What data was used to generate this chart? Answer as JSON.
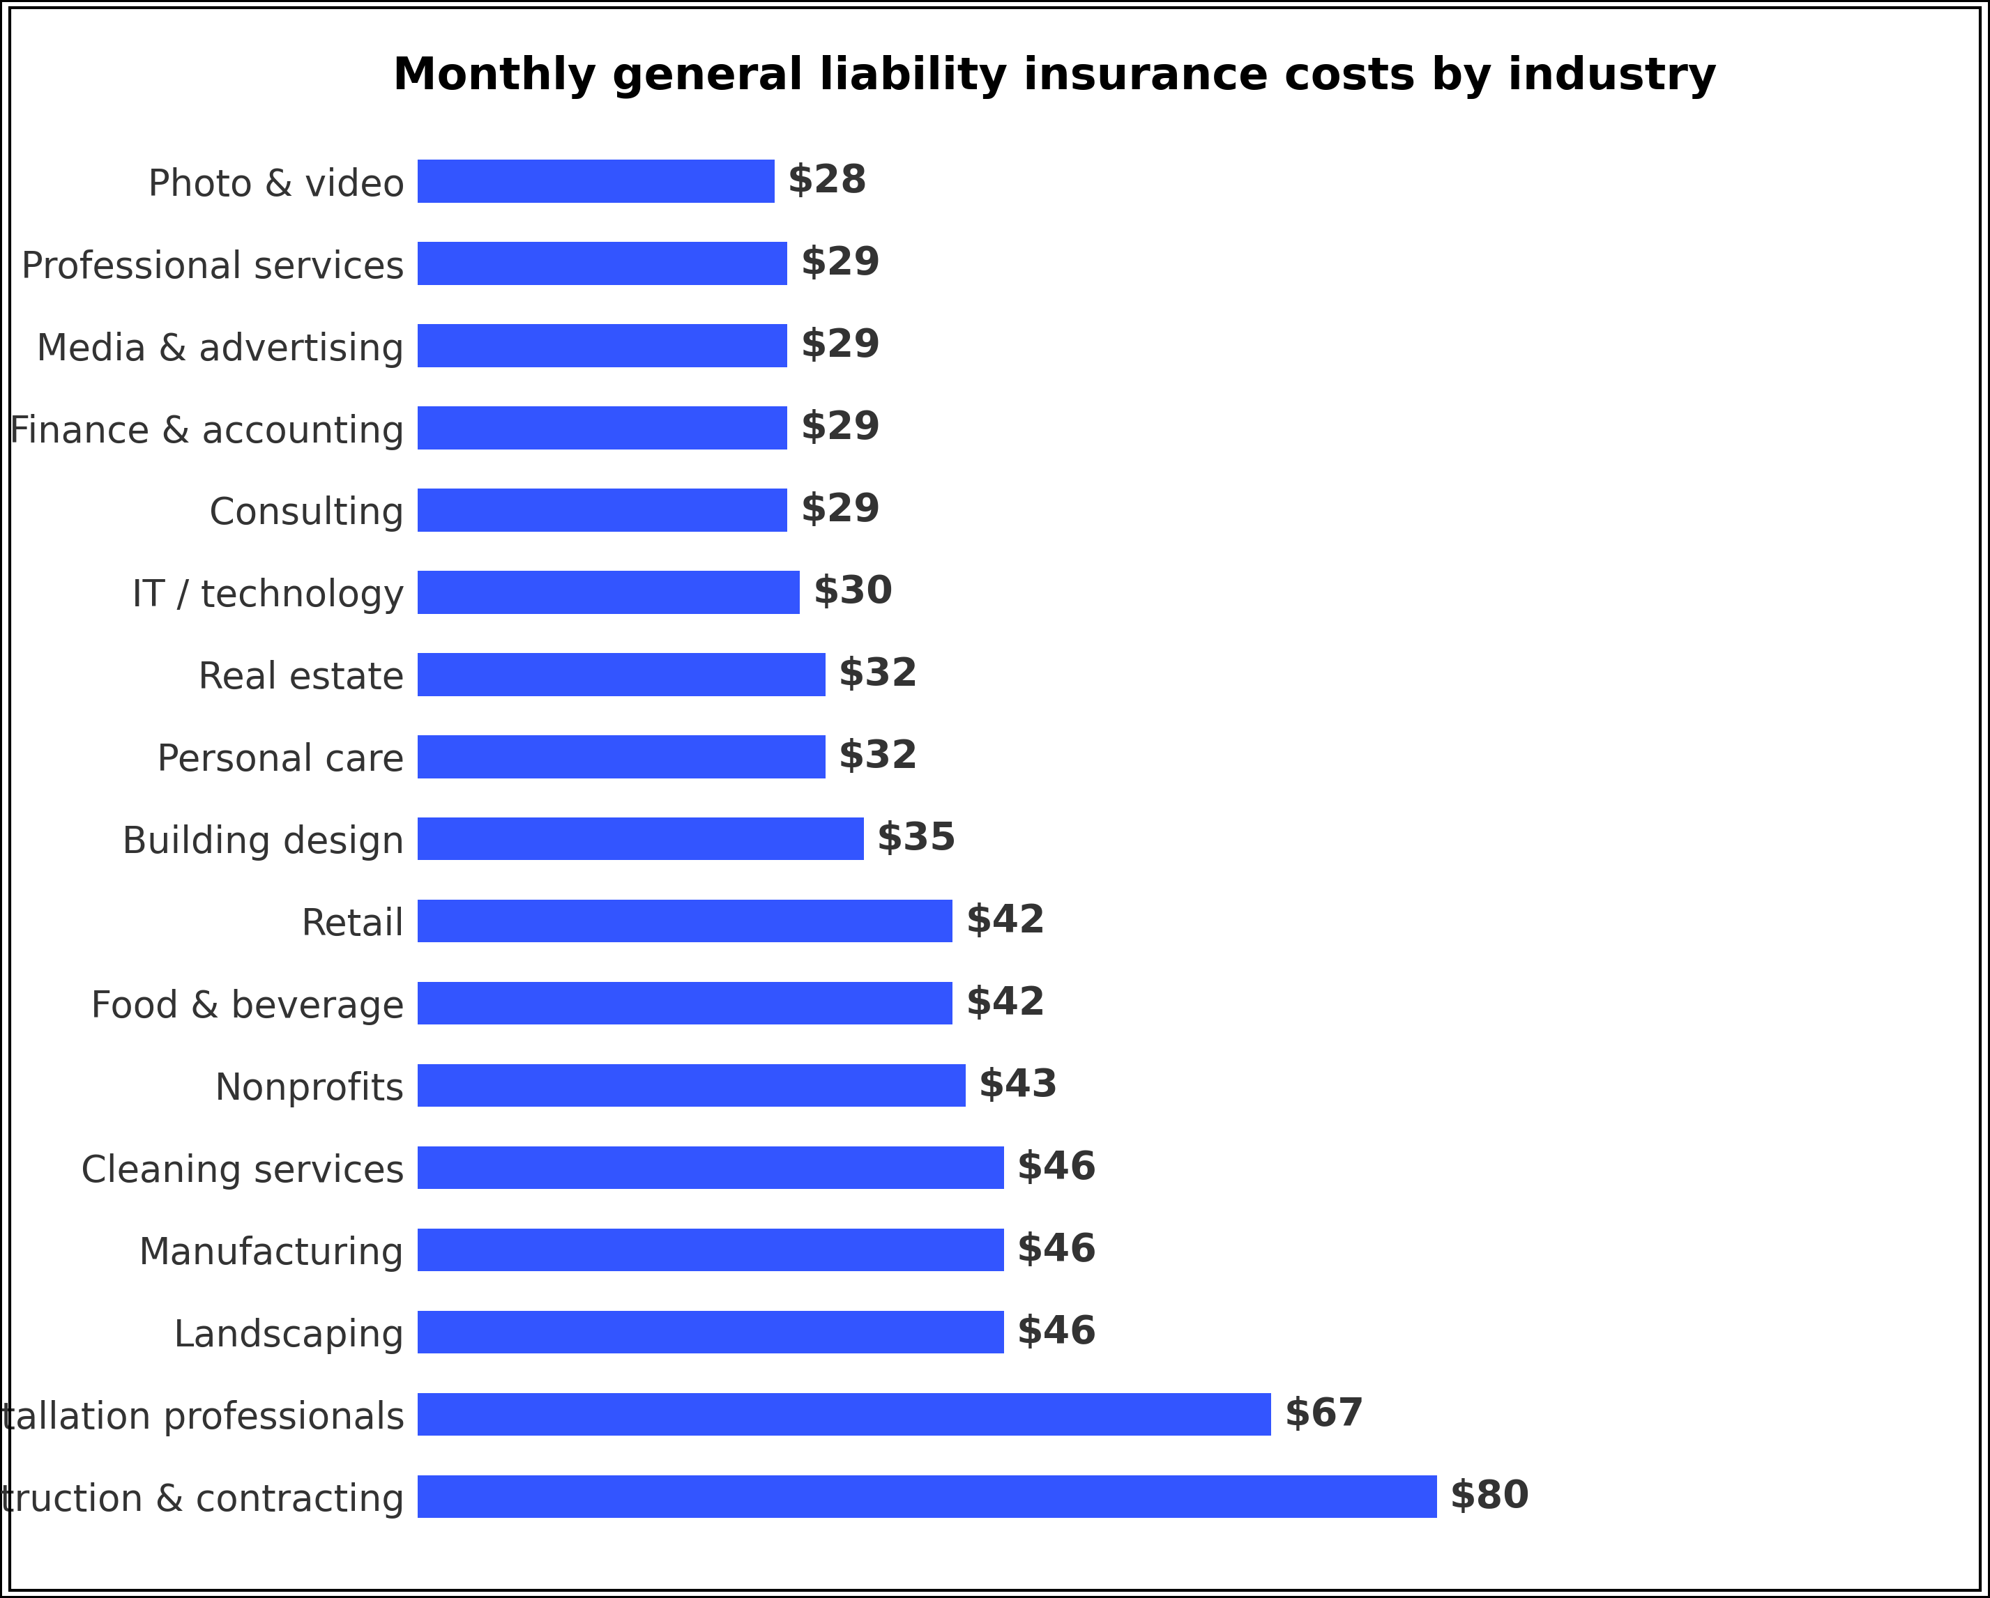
{
  "title": "Monthly general liability insurance costs by industry",
  "categories": [
    "Construction & contracting",
    "Installation professionals",
    "Landscaping",
    "Manufacturing",
    "Cleaning services",
    "Nonprofits",
    "Food & beverage",
    "Retail",
    "Building design",
    "Personal care",
    "Real estate",
    "IT / technology",
    "Consulting",
    "Finance & accounting",
    "Media & advertising",
    "Professional services",
    "Photo & video"
  ],
  "values": [
    80,
    67,
    46,
    46,
    46,
    43,
    42,
    42,
    35,
    32,
    32,
    30,
    29,
    29,
    29,
    29,
    28
  ],
  "bar_color": "#3355ff",
  "label_color": "#333333",
  "title_fontsize": 46,
  "label_fontsize": 38,
  "value_fontsize": 40,
  "background_color": "#ffffff",
  "bar_height": 0.52,
  "xlim": [
    0,
    100
  ],
  "border_color": "#000000",
  "border_linewidth": 3
}
